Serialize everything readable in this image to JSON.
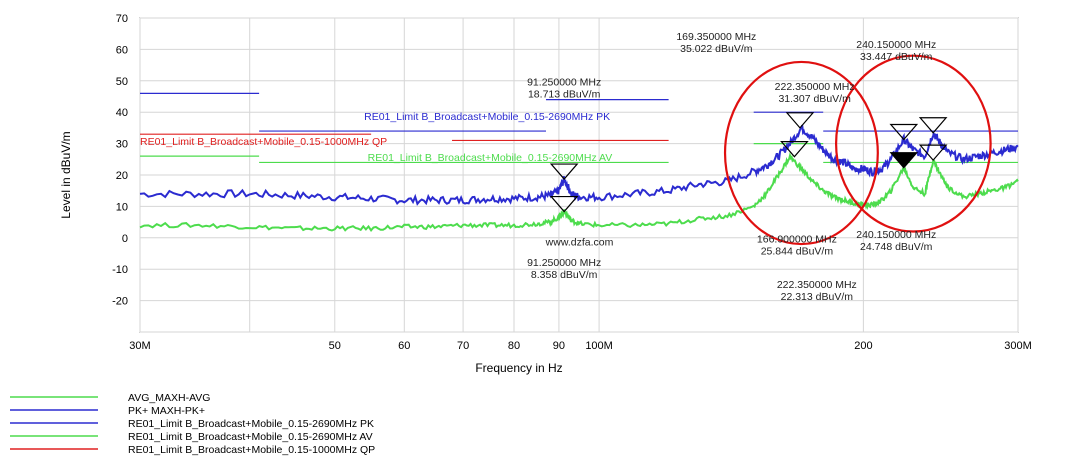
{
  "chart_data": {
    "type": "line",
    "ylabel": "Level in dBuV/m",
    "xlabel": "Frequency in Hz",
    "x_scale": "log",
    "xlim": [
      30,
      300
    ],
    "ylim": [
      -30,
      70
    ],
    "grid": true,
    "legend_position": "bottom-left",
    "y_ticks": [
      70,
      60,
      50,
      40,
      30,
      20,
      10,
      0,
      -10,
      -20
    ],
    "x_ticks": [
      {
        "value": 30,
        "label": "30M"
      },
      {
        "value": 50,
        "label": "50"
      },
      {
        "value": 60,
        "label": "60"
      },
      {
        "value": 70,
        "label": "70"
      },
      {
        "value": 80,
        "label": "80"
      },
      {
        "value": 90,
        "label": "90"
      },
      {
        "value": 100,
        "label": "100M"
      },
      {
        "value": 200,
        "label": "200"
      },
      {
        "value": 300,
        "label": "300M"
      }
    ],
    "series": [
      {
        "name": "PK+  MAXH-PK+",
        "color": "#2b2bd0",
        "x": [
          30,
          35,
          40,
          45,
          50,
          55,
          60,
          65,
          70,
          75,
          80,
          85,
          88,
          90,
          91.25,
          93,
          95,
          100,
          110,
          120,
          130,
          140,
          150,
          155,
          160,
          165,
          170,
          175,
          180,
          185,
          190,
          195,
          200,
          205,
          210,
          215,
          222.35,
          228,
          235,
          240.15,
          245,
          250,
          260,
          270,
          280,
          290,
          300
        ],
        "y": [
          14,
          14,
          14,
          13.5,
          13,
          12.5,
          12,
          12,
          12,
          12.5,
          12.5,
          13,
          13.5,
          15,
          18.7,
          14,
          13,
          13,
          14,
          15,
          17,
          18,
          21,
          23,
          26,
          30,
          35,
          32,
          28,
          25,
          24,
          22,
          22,
          21,
          22,
          25,
          31.3,
          28,
          26,
          33.4,
          30,
          27,
          25,
          26,
          27,
          28,
          29
        ]
      },
      {
        "name": "AVG_MAXH-AVG",
        "color": "#4ddc4d",
        "x": [
          30,
          35,
          40,
          45,
          50,
          55,
          60,
          65,
          70,
          75,
          80,
          85,
          88,
          90,
          91.25,
          93,
          95,
          100,
          110,
          120,
          130,
          140,
          150,
          155,
          160,
          165,
          170,
          175,
          180,
          185,
          190,
          195,
          200,
          205,
          210,
          215,
          222.35,
          228,
          235,
          240.15,
          245,
          250,
          260,
          270,
          280,
          290,
          300
        ],
        "y": [
          4,
          4,
          3.5,
          3,
          3,
          3,
          3.5,
          3.5,
          4,
          4,
          4,
          4.5,
          5,
          6.5,
          8.4,
          5.5,
          4.5,
          4,
          4,
          4.5,
          6,
          7,
          10,
          14,
          20,
          25.8,
          22,
          18,
          15,
          13,
          12,
          11,
          10.5,
          10.5,
          12,
          15,
          22.3,
          16,
          14,
          24.7,
          20,
          16,
          13,
          14,
          15,
          16,
          18
        ]
      }
    ],
    "limits": [
      {
        "name": "RE01_Limit B_Broadcast+Mobile_0.15-2690MHz PK",
        "color": "#2b2bd0",
        "segments": [
          [
            30,
            41,
            46
          ],
          [
            41,
            87,
            34
          ],
          [
            87,
            120,
            44
          ],
          [
            150,
            180,
            40
          ],
          [
            180,
            300,
            34
          ]
        ]
      },
      {
        "name": "RE01_Limit B_Broadcast+Mobile_0.15-2690MHz AV",
        "color": "#4ddc4d",
        "segments": [
          [
            30,
            41,
            26
          ],
          [
            41,
            87,
            24
          ],
          [
            87,
            120,
            24
          ],
          [
            150,
            180,
            30
          ],
          [
            180,
            300,
            24
          ]
        ]
      },
      {
        "name": "RE01_Limit B_Broadcast+Mobile_0.15-1000MHz QP",
        "color": "#e02020",
        "segments": [
          [
            30,
            55,
            33
          ],
          [
            68,
            120,
            31
          ]
        ]
      }
    ],
    "limit_labels": [
      {
        "text": "RE01_Limit B_Broadcast+Mobile_0.15-2690MHz PK",
        "color": "#2b2bd0",
        "x": 54,
        "y": 37.5
      },
      {
        "text": "RE01_Limit B_Broadcast+Mobile_0.15-1000MHz QP",
        "color": "#e02020",
        "x": 30,
        "y": 29.5
      },
      {
        "text": "RE01_Limit B_Broadcast+Mobile_0.15-2690MHz AV",
        "color": "#4ddc4d",
        "x": 54.5,
        "y": 24.5
      }
    ],
    "markers": [
      {
        "x": 91.25,
        "y": 18.713,
        "type": "open"
      },
      {
        "x": 91.25,
        "y": 8.358,
        "type": "open"
      },
      {
        "x": 169.35,
        "y": 35.022,
        "type": "open"
      },
      {
        "x": 166.9,
        "y": 25.844,
        "type": "open"
      },
      {
        "x": 222.35,
        "y": 31.307,
        "type": "open"
      },
      {
        "x": 222.35,
        "y": 22.313,
        "type": "filled"
      },
      {
        "x": 240.15,
        "y": 33.447,
        "type": "open"
      },
      {
        "x": 240.15,
        "y": 24.748,
        "type": "open"
      }
    ],
    "annotations": [
      {
        "line1": "91.250000 MHz",
        "line2": "18.713 dBuV/m",
        "x": 91.25,
        "y": 48.5
      },
      {
        "line1": "91.250000 MHz",
        "line2": "8.358 dBuV/m",
        "x": 91.25,
        "y": -9
      },
      {
        "line1": "169.350000 MHz",
        "line2": "35.022 dBuV/m",
        "x": 136,
        "y": 63
      },
      {
        "line1": "166.900000 MHz",
        "line2": "25.844 dBuV/m",
        "x": 168,
        "y": -1.5
      },
      {
        "line1": "222.350000 MHz",
        "line2": "31.307 dBuV/m",
        "x": 176,
        "y": 47
      },
      {
        "line1": "222.350000 MHz",
        "line2": "22.313 dBuV/m",
        "x": 177,
        "y": -16
      },
      {
        "line1": "240.150000 MHz",
        "line2": "33.447 dBuV/m",
        "x": 218,
        "y": 60.5
      },
      {
        "line1": "240.150000 MHz",
        "line2": "24.748 dBuV/m",
        "x": 218,
        "y": 0
      }
    ],
    "highlight_ellipses": [
      {
        "center": [
          170,
          27
        ],
        "rx_decades": 0.087,
        "ry": 29
      },
      {
        "center": [
          228,
          30
        ],
        "rx_decades": 0.088,
        "ry": 28
      }
    ],
    "watermark": {
      "text": "www.dzfa.com",
      "x": 95,
      "y": -2.5
    }
  },
  "legend": [
    {
      "name": "AVG_MAXH-AVG",
      "color": "#4ddc4d"
    },
    {
      "name": "PK+  MAXH-PK+",
      "color": "#2b2bd0"
    },
    {
      "name": "RE01_Limit B_Broadcast+Mobile_0.15-2690MHz PK",
      "color": "#2b2bd0"
    },
    {
      "name": "RE01_Limit B_Broadcast+Mobile_0.15-2690MHz AV",
      "color": "#4ddc4d"
    },
    {
      "name": "RE01_Limit B_Broadcast+Mobile_0.15-1000MHz QP",
      "color": "#e02020"
    }
  ]
}
